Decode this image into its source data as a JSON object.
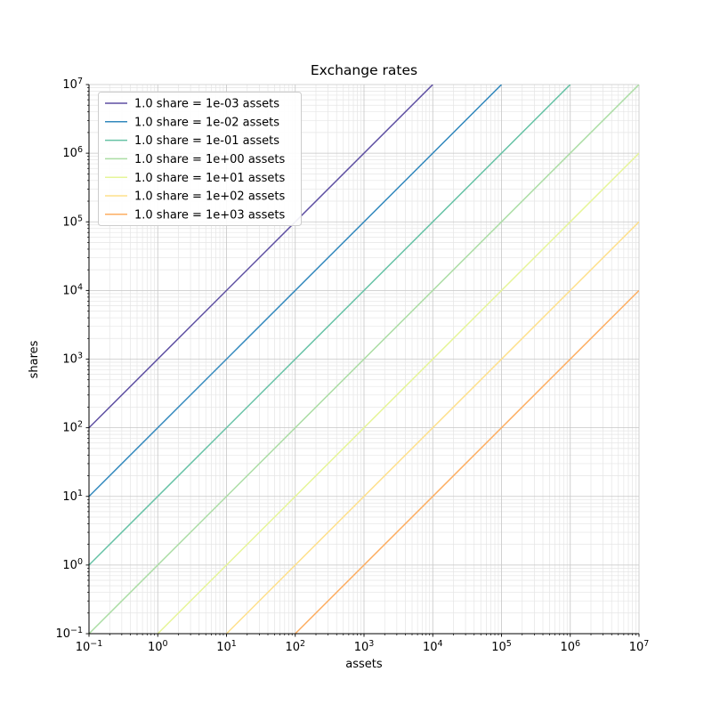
{
  "figure": {
    "background": "#ffffff"
  },
  "chart_data": {
    "type": "line",
    "title": "Exchange rates",
    "xlabel": "assets",
    "ylabel": "shares",
    "x_scale": "log",
    "y_scale": "log",
    "xlim": [
      0.1,
      10000000
    ],
    "ylim": [
      0.1,
      10000000
    ],
    "tick_base": "10",
    "x_tick_exponents": [
      -1,
      0,
      1,
      2,
      3,
      4,
      5,
      6,
      7
    ],
    "y_tick_exponents": [
      -1,
      0,
      1,
      2,
      3,
      4,
      5,
      6,
      7
    ],
    "grid": {
      "which": "both",
      "major_color": "#c6c6c6",
      "minor_color": "#e5e5e5"
    },
    "spine_color": "#000000",
    "legend": {
      "position": "upper left",
      "frame_color": "#cccccc",
      "background": "#ffffff"
    },
    "series": [
      {
        "name": "1.0 share = 1e-03 assets",
        "assets_per_share": 0.001,
        "color": "#5e4fa2",
        "points": [
          [
            0.1,
            100
          ],
          [
            10000,
            10000000
          ]
        ]
      },
      {
        "name": "1.0 share = 1e-02 assets",
        "assets_per_share": 0.01,
        "color": "#3288bd",
        "points": [
          [
            0.1,
            10
          ],
          [
            100000,
            10000000
          ]
        ]
      },
      {
        "name": "1.0 share = 1e-01 assets",
        "assets_per_share": 0.1,
        "color": "#66c2a5",
        "points": [
          [
            0.1,
            1
          ],
          [
            1000000,
            10000000
          ]
        ]
      },
      {
        "name": "1.0 share = 1e+00 assets",
        "assets_per_share": 1,
        "color": "#abdda4",
        "points": [
          [
            0.1,
            0.1
          ],
          [
            10000000,
            10000000
          ]
        ]
      },
      {
        "name": "1.0 share = 1e+01 assets",
        "assets_per_share": 10,
        "color": "#e6f598",
        "points": [
          [
            1,
            0.1
          ],
          [
            10000000,
            1000000
          ]
        ]
      },
      {
        "name": "1.0 share = 1e+02 assets",
        "assets_per_share": 100,
        "color": "#fee08b",
        "points": [
          [
            10,
            0.1
          ],
          [
            10000000,
            100000
          ]
        ]
      },
      {
        "name": "1.0 share = 1e+03 assets",
        "assets_per_share": 1000,
        "color": "#fdae61",
        "points": [
          [
            100,
            0.1
          ],
          [
            10000000,
            10000
          ]
        ]
      }
    ]
  }
}
